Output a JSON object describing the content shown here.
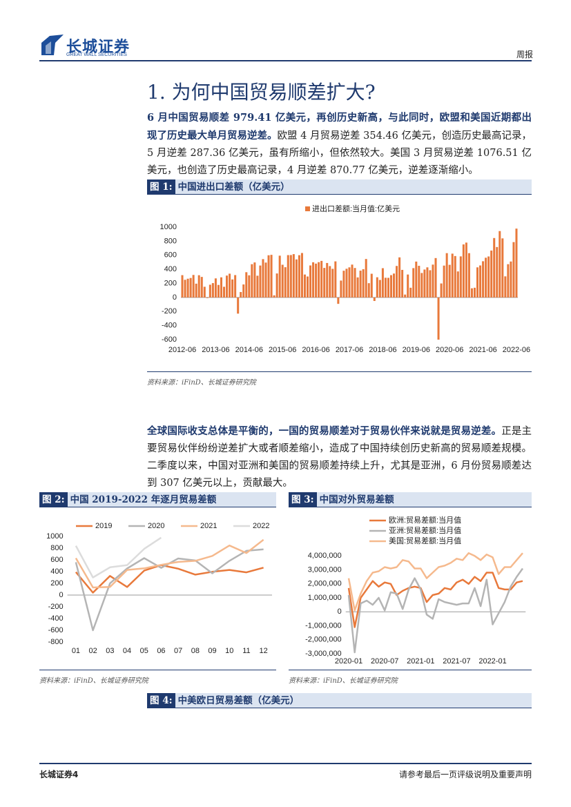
{
  "header": {
    "logo_cn": "长城证券",
    "logo_en": "GREAT WALL SECURITIES",
    "doc_type": "周报"
  },
  "section_title": "1. 为何中国贸易顺差扩大?",
  "paragraphs": [
    {
      "bold": "6 月中国贸易顺差 979.41 亿美元，再创历史新高，与此同时，欧盟和美国近期都出现了历史最大单月贸易逆差。",
      "text": "欧盟 4 月贸易逆差 354.46 亿美元，创造历史最高记录，5 月逆差 287.36 亿美元，虽有所缩小，但依然较大。美国 3 月贸易逆差 1076.51 亿美元，也创造了历史最高记录，4 月逆差 870.77 亿美元，逆差逐渐缩小。"
    },
    {
      "bold": "全球国际收支总体是平衡的，一国的贸易顺差对于贸易伙伴来说就是贸易逆差。",
      "text": "正是主要贸易伙伴纷纷逆差扩大或者顺差缩小，造成了中国持续创历史新高的贸易顺差规模。二季度以来，中国对亚洲和美国的贸易顺差持续上升，尤其是亚洲，6 月份贸易顺差达到 307 亿美元以上，贡献最大。"
    }
  ],
  "figures": [
    {
      "label": "图 1:",
      "caption": "中国进出口差额（亿美元）",
      "source": "资料来源：iFinD、长城证券研究院"
    },
    {
      "label": "图 2:",
      "caption": "中国 2019-2022 年逐月贸易差额",
      "source": "资料来源：iFinD、长城证券研究院"
    },
    {
      "label": "图 3:",
      "caption": "中国对外贸易差额",
      "source": "资料来源：iFinD、长城证券研究院"
    },
    {
      "label": "图 4:",
      "caption": "中美欧日贸易差额（亿美元）"
    }
  ],
  "chart_data": [
    {
      "type": "bar",
      "legend": "top",
      "grid": false,
      "categories": [
        "2012-06",
        null,
        null,
        null,
        null,
        null,
        null,
        null,
        null,
        null,
        null,
        null,
        "2013-06",
        null,
        null,
        null,
        null,
        null,
        null,
        null,
        null,
        null,
        null,
        null,
        "2014-06",
        null,
        null,
        null,
        null,
        null,
        null,
        null,
        null,
        null,
        null,
        null,
        "2015-06",
        null,
        null,
        null,
        null,
        null,
        null,
        null,
        null,
        null,
        null,
        null,
        "2016-06",
        null,
        null,
        null,
        null,
        null,
        null,
        null,
        null,
        null,
        null,
        null,
        "2017-06",
        null,
        null,
        null,
        null,
        null,
        null,
        null,
        null,
        null,
        null,
        null,
        "2018-06",
        null,
        null,
        null,
        null,
        null,
        null,
        null,
        null,
        null,
        null,
        null,
        "2019-06",
        null,
        null,
        null,
        null,
        null,
        null,
        null,
        null,
        null,
        null,
        null,
        "2020-06",
        null,
        null,
        null,
        null,
        null,
        null,
        null,
        null,
        null,
        null,
        null,
        "2021-06",
        null,
        null,
        null,
        null,
        null,
        null,
        null,
        null,
        null,
        null,
        null,
        "2022-06"
      ],
      "series": [
        {
          "name": "进出口差额:当月值:亿美元",
          "color": "#e8793b",
          "values": [
            317,
            251,
            266,
            277,
            320,
            196,
            316,
            292,
            152,
            -9,
            181,
            204,
            271,
            178,
            286,
            152,
            311,
            338,
            256,
            318,
            -230,
            77,
            185,
            359,
            315,
            473,
            498,
            309,
            454,
            545,
            496,
            600,
            606,
            30,
            341,
            594,
            465,
            430,
            602,
            603,
            616,
            541,
            601,
            632,
            326,
            298,
            455,
            500,
            481,
            502,
            520,
            420,
            490,
            446,
            407,
            513,
            -91,
            240,
            380,
            408,
            428,
            467,
            419,
            285,
            381,
            402,
            547,
            203,
            337,
            -50,
            287,
            249,
            416,
            280,
            279,
            317,
            340,
            448,
            570,
            392,
            41,
            326,
            138,
            417,
            510,
            450,
            348,
            397,
            428,
            387,
            467,
            560,
            -600,
            199,
            453,
            630,
            464,
            623,
            589,
            370,
            584,
            754,
            780,
            630,
            130,
            138,
            428,
            455,
            515,
            565,
            583,
            667,
            845,
            717,
            944,
            840,
            300,
            473,
            511,
            787,
            979
          ]
        }
      ],
      "ylim": [
        -600,
        1000
      ],
      "yticks": [
        -600,
        -400,
        -200,
        0,
        200,
        400,
        600,
        800,
        1000
      ]
    },
    {
      "type": "line",
      "legend": "top",
      "grid": false,
      "categories": [
        "01",
        "02",
        "03",
        "04",
        "05",
        "06",
        "07",
        "08",
        "09",
        "10",
        "11",
        "12"
      ],
      "series": [
        {
          "name": "2019",
          "color": "#e8793b",
          "values": [
            392,
            41,
            326,
            138,
            417,
            510,
            450,
            348,
            397,
            428,
            387,
            467
          ]
        },
        {
          "name": "2020",
          "color": "#b4b4b4",
          "values": [
            560,
            -600,
            199,
            453,
            630,
            464,
            623,
            589,
            370,
            584,
            754,
            780
          ]
        },
        {
          "name": "2021",
          "color": "#f5b98d",
          "values": [
            630,
            130,
            138,
            428,
            455,
            515,
            565,
            583,
            667,
            845,
            717,
            944
          ]
        },
        {
          "name": "2022",
          "color": "#dcdcdc",
          "values": [
            840,
            300,
            473,
            511,
            787,
            979,
            null,
            null,
            null,
            null,
            null,
            null
          ]
        }
      ],
      "ylim": [
        -800,
        1000
      ],
      "yticks": [
        -800,
        -600,
        -400,
        -200,
        0,
        200,
        400,
        600,
        800,
        1000
      ]
    },
    {
      "type": "line",
      "legend": "top-left",
      "grid": false,
      "categories": [
        "2020-01",
        null,
        null,
        null,
        null,
        null,
        "2020-07",
        null,
        null,
        null,
        null,
        null,
        "2021-01",
        null,
        null,
        null,
        null,
        null,
        "2021-07",
        null,
        null,
        null,
        null,
        null,
        "2022-01",
        null,
        null,
        null,
        null,
        null
      ],
      "series": [
        {
          "name": "欧洲:贸易差额:当月值",
          "color": "#e8793b",
          "values": [
            1700000,
            -1100000,
            1000000,
            1600000,
            2200000,
            1800000,
            2100000,
            2000000,
            1200000,
            1500000,
            1700000,
            1800000,
            1700000,
            700000,
            1200000,
            1300000,
            1700000,
            1600000,
            2100000,
            2300000,
            2000000,
            2500000,
            2200000,
            2800000,
            2800000,
            1700000,
            1600000,
            1600000,
            2100000,
            2200000
          ]
        },
        {
          "name": "亚洲:贸易差额:当月值",
          "color": "#b4b4b4",
          "values": [
            1200000,
            -2900000,
            600000,
            800000,
            500000,
            1000000,
            100000,
            1400000,
            1300000,
            200000,
            1600000,
            2400000,
            1600000,
            -200000,
            -500000,
            900000,
            700000,
            600000,
            500000,
            600000,
            600000,
            1700000,
            400000,
            2300000,
            -900000,
            -100000,
            700000,
            1800000,
            2500000,
            3100000
          ]
        },
        {
          "name": "美国:贸易差额:当月值",
          "color": "#f5b98d",
          "values": [
            2400000,
            100000,
            1300000,
            2200000,
            2800000,
            2900000,
            3200000,
            3100000,
            3200000,
            3700000,
            3600000,
            3100000,
            3100000,
            2400000,
            2800000,
            3200000,
            3300000,
            3500000,
            3800000,
            3700000,
            4200000,
            4000000,
            3700000,
            4100000,
            3900000,
            2700000,
            3200000,
            3200000,
            3700000,
            4200000
          ]
        }
      ],
      "ylim": [
        -3000000,
        5000000
      ],
      "yticks": [
        {
          "value": -3000000,
          "label": "-3,000,000"
        },
        {
          "value": -2000000,
          "label": "-2,000,000"
        },
        {
          "value": -1000000,
          "label": "-1,000,000"
        },
        0,
        {
          "value": 1000000,
          "label": "1,000,000"
        },
        {
          "value": 2000000,
          "label": "2,000,000"
        },
        {
          "value": 3000000,
          "label": "3,000,000"
        },
        {
          "value": 4000000,
          "label": "4,000,000"
        }
      ]
    }
  ],
  "footer": {
    "left": "长城证券4",
    "right": "请参考最后一页评级说明及重要声明"
  }
}
